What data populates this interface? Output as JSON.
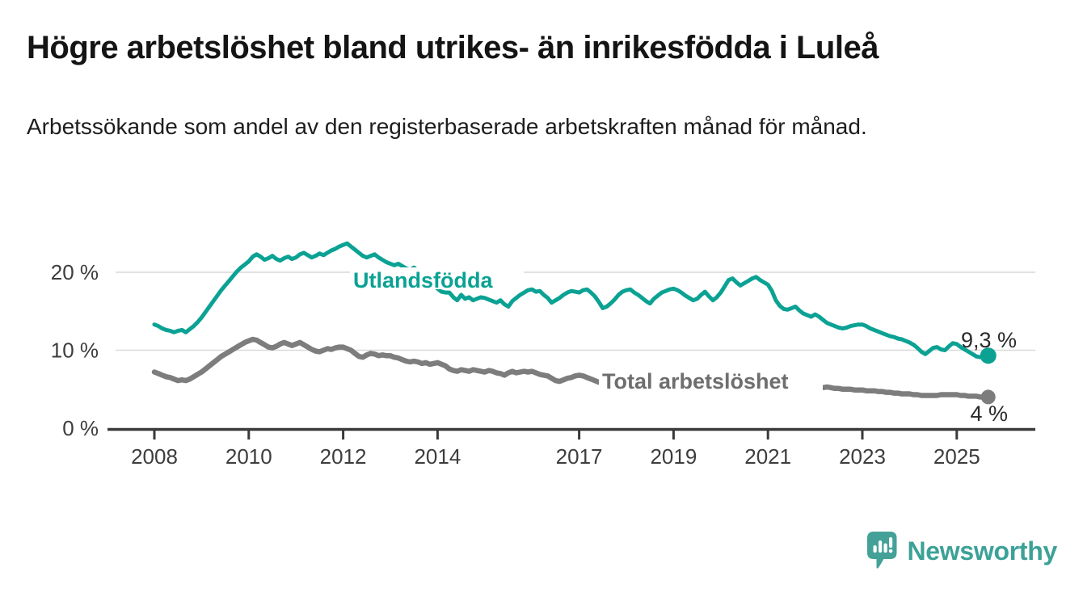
{
  "header": {
    "title": "Högre arbetslöshet bland utrikes- än inrikesfödda i Luleå",
    "subtitle": "Arbetssökande som andel av den registerbaserade arbetskraften månad för månad."
  },
  "chart_data": {
    "type": "line",
    "unit": "%",
    "frequency": "monthly",
    "start": "2008-01",
    "end": "2025-09",
    "x_tick_years": [
      2008,
      2010,
      2012,
      2014,
      2017,
      2019,
      2021,
      2023,
      2025
    ],
    "x_tick_labels": [
      "2008",
      "2010",
      "2012",
      "2014",
      "2017",
      "2019",
      "2021",
      "2023",
      "2025"
    ],
    "y_ticks": [
      {
        "value": 0,
        "label": "0 %"
      },
      {
        "value": 10,
        "label": "10 %"
      },
      {
        "value": 20,
        "label": "20 %"
      }
    ],
    "ylim": [
      0,
      25
    ],
    "grid": "horizontal",
    "legend_position": "inline-labels",
    "series": [
      {
        "name": "Utlandsfödda",
        "color": "#0ba294",
        "end_value": 9.3,
        "end_label": "9,3 %",
        "values": [
          13.3,
          13.1,
          12.8,
          12.6,
          12.5,
          12.3,
          12.5,
          12.6,
          12.3,
          12.7,
          13.1,
          13.6,
          14.2,
          14.9,
          15.6,
          16.3,
          17.0,
          17.7,
          18.3,
          18.9,
          19.5,
          20.1,
          20.6,
          21.0,
          21.4,
          22.0,
          22.3,
          22.0,
          21.6,
          21.8,
          22.1,
          21.7,
          21.5,
          21.8,
          22.0,
          21.7,
          21.9,
          22.3,
          22.5,
          22.2,
          21.9,
          22.1,
          22.4,
          22.2,
          22.5,
          22.8,
          23.0,
          23.3,
          23.5,
          23.7,
          23.3,
          22.9,
          22.5,
          22.1,
          21.9,
          22.1,
          22.3,
          21.9,
          21.6,
          21.3,
          21.1,
          20.9,
          21.1,
          20.8,
          20.5,
          20.3,
          20.6,
          20.2,
          19.8,
          19.4,
          18.9,
          18.4,
          17.9,
          17.5,
          17.4,
          17.4,
          16.8,
          16.4,
          17.1,
          16.6,
          16.8,
          16.4,
          16.6,
          16.8,
          16.7,
          16.5,
          16.3,
          16.1,
          16.4,
          15.9,
          15.6,
          16.3,
          16.7,
          17.1,
          17.4,
          17.7,
          17.8,
          17.5,
          17.6,
          17.1,
          16.7,
          16.1,
          16.4,
          16.7,
          17.1,
          17.4,
          17.6,
          17.5,
          17.4,
          17.7,
          17.8,
          17.4,
          16.9,
          16.2,
          15.4,
          15.6,
          16.0,
          16.5,
          17.1,
          17.5,
          17.7,
          17.8,
          17.4,
          17.1,
          16.7,
          16.3,
          16.0,
          16.6,
          17.0,
          17.4,
          17.6,
          17.8,
          17.9,
          17.7,
          17.4,
          17.0,
          16.7,
          16.4,
          16.6,
          17.1,
          17.5,
          16.9,
          16.4,
          16.8,
          17.4,
          18.2,
          19.0,
          19.2,
          18.7,
          18.3,
          18.6,
          18.9,
          19.2,
          19.4,
          19.0,
          18.7,
          18.4,
          17.6,
          16.4,
          15.7,
          15.3,
          15.2,
          15.4,
          15.6,
          15.1,
          14.7,
          14.5,
          14.3,
          14.6,
          14.3,
          13.9,
          13.5,
          13.3,
          13.1,
          12.9,
          12.8,
          12.9,
          13.1,
          13.2,
          13.3,
          13.3,
          13.1,
          12.8,
          12.6,
          12.4,
          12.2,
          12.0,
          11.8,
          11.7,
          11.5,
          11.4,
          11.2,
          11.0,
          10.7,
          10.3,
          9.8,
          9.5,
          9.9,
          10.3,
          10.4,
          10.1,
          10.0,
          10.5,
          10.9,
          10.8,
          10.4,
          10.1,
          9.8,
          9.5,
          9.2,
          9.1,
          9.2,
          9.3
        ]
      },
      {
        "name": "Total arbetslöshet",
        "color": "#7d7d7d",
        "end_value": 4.0,
        "end_label": "4 %",
        "values": [
          7.2,
          7.0,
          6.8,
          6.6,
          6.5,
          6.3,
          6.1,
          6.2,
          6.1,
          6.3,
          6.6,
          6.9,
          7.2,
          7.6,
          8.0,
          8.4,
          8.8,
          9.2,
          9.5,
          9.8,
          10.1,
          10.4,
          10.7,
          11.0,
          11.2,
          11.4,
          11.3,
          11.0,
          10.7,
          10.4,
          10.3,
          10.5,
          10.8,
          11.0,
          10.8,
          10.6,
          10.8,
          11.0,
          10.7,
          10.4,
          10.1,
          9.9,
          9.8,
          10.0,
          10.2,
          10.1,
          10.3,
          10.4,
          10.4,
          10.2,
          10.0,
          9.6,
          9.2,
          9.1,
          9.4,
          9.6,
          9.5,
          9.3,
          9.4,
          9.3,
          9.3,
          9.1,
          9.0,
          8.8,
          8.6,
          8.5,
          8.6,
          8.5,
          8.3,
          8.4,
          8.2,
          8.3,
          8.4,
          8.2,
          8.0,
          7.6,
          7.4,
          7.3,
          7.5,
          7.4,
          7.3,
          7.5,
          7.4,
          7.3,
          7.2,
          7.4,
          7.3,
          7.1,
          7.0,
          6.8,
          7.1,
          7.3,
          7.1,
          7.2,
          7.3,
          7.2,
          7.3,
          7.1,
          6.9,
          6.8,
          6.7,
          6.4,
          6.1,
          6.0,
          6.2,
          6.4,
          6.5,
          6.7,
          6.8,
          6.7,
          6.5,
          6.3,
          6.1,
          5.9,
          5.8,
          5.9,
          6.0,
          6.1,
          6.2,
          6.2,
          6.1,
          6.0,
          5.9,
          5.8,
          5.7,
          5.6,
          5.5,
          5.6,
          5.7,
          5.7,
          5.8,
          5.8,
          5.7,
          5.6,
          5.5,
          5.4,
          5.4,
          5.3,
          5.2,
          5.3,
          5.4,
          5.5,
          5.6,
          5.7,
          5.8,
          6.0,
          6.2,
          6.3,
          6.2,
          6.1,
          6.0,
          5.9,
          5.8,
          5.8,
          5.7,
          5.6,
          5.6,
          5.5,
          5.5,
          5.4,
          5.4,
          5.3,
          5.3,
          5.2,
          5.2,
          5.2,
          5.2,
          5.2,
          5.2,
          5.2,
          5.2,
          5.3,
          5.2,
          5.1,
          5.1,
          5.0,
          5.0,
          5.0,
          4.9,
          4.9,
          4.9,
          4.8,
          4.8,
          4.8,
          4.7,
          4.7,
          4.6,
          4.6,
          4.5,
          4.5,
          4.4,
          4.4,
          4.4,
          4.3,
          4.3,
          4.2,
          4.2,
          4.2,
          4.2,
          4.2,
          4.3,
          4.3,
          4.3,
          4.3,
          4.3,
          4.2,
          4.2,
          4.1,
          4.1,
          4.1,
          4.0,
          4.0,
          4.0
        ]
      }
    ]
  },
  "colors": {
    "accent_teal": "#0ba294",
    "series_gray": "#7d7d7d",
    "axis": "#3a3a3a",
    "grid": "#d9d9d9",
    "tick_text": "#3d3d3d",
    "value_label_text": "#2b2b2b",
    "brand_teal": "#3ca197"
  },
  "footer": {
    "brand": "Newsworthy"
  }
}
